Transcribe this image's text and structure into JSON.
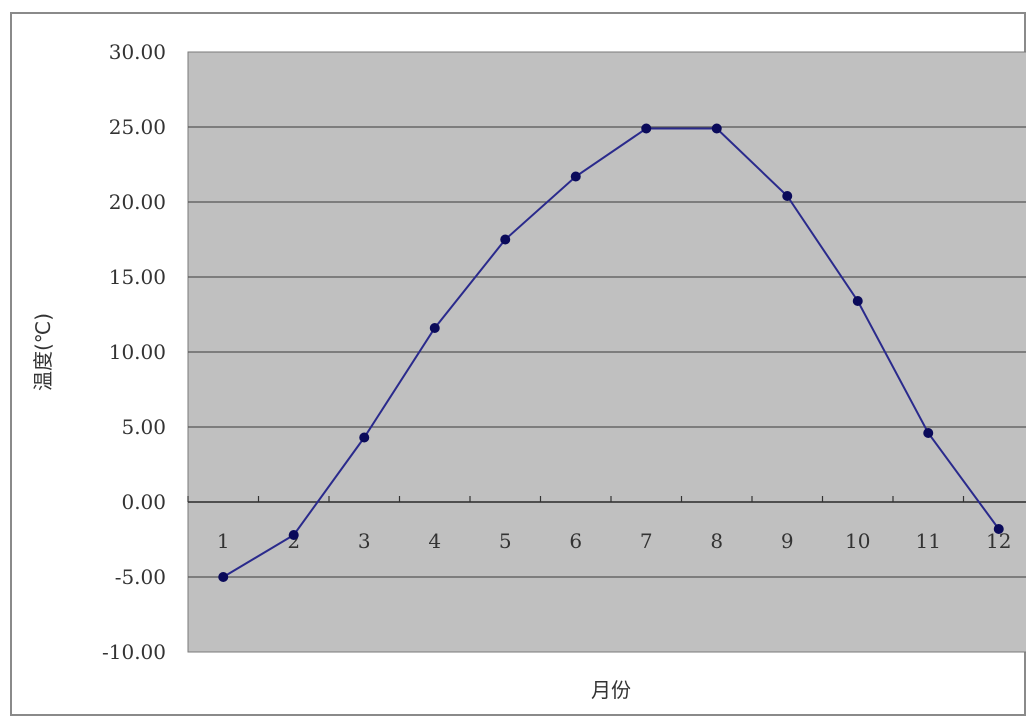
{
  "chart_data": {
    "type": "line",
    "title": "",
    "xlabel": "月份",
    "ylabel": "温度(℃)",
    "categories": [
      "1",
      "2",
      "3",
      "4",
      "5",
      "6",
      "7",
      "8",
      "9",
      "10",
      "11",
      "12"
    ],
    "series": [
      {
        "values": [
          -5.0,
          -2.2,
          4.3,
          11.6,
          17.5,
          21.7,
          24.9,
          24.9,
          20.4,
          13.4,
          4.6,
          -1.8
        ],
        "color": "#2a2a8c"
      }
    ],
    "ylim": [
      -10,
      30
    ],
    "y_ticks": [
      "30.00",
      "25.00",
      "20.00",
      "15.00",
      "10.00",
      "5.00",
      "0.00",
      "-5.00",
      "-10.00"
    ],
    "y_tick_values": [
      30,
      25,
      20,
      15,
      10,
      5,
      0,
      -5,
      -10
    ],
    "grid": true,
    "plot_background": "#c0c0c0",
    "gridline_color": "#555555",
    "marker_color": "#0a0a5a"
  }
}
